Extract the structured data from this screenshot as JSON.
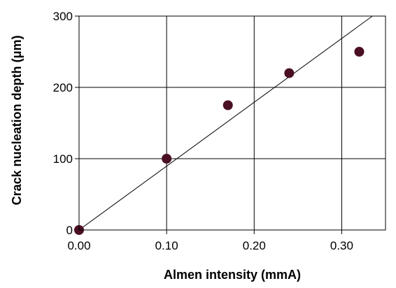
{
  "chart_data": {
    "type": "scatter",
    "title": "",
    "xlabel": "Almen intensity (mmA)",
    "ylabel": "Crack nucleation depth (μm)",
    "xlim": [
      0,
      0.35
    ],
    "ylim": [
      0,
      300
    ],
    "x_ticks": [
      "0.00",
      "0.10",
      "0.20",
      "0.30"
    ],
    "y_ticks": [
      "0",
      "100",
      "200",
      "300"
    ],
    "grid": true,
    "legend": "none",
    "series": [
      {
        "points": [
          {
            "x": 0.0,
            "y": 0
          },
          {
            "x": 0.1,
            "y": 100
          },
          {
            "x": 0.17,
            "y": 175
          },
          {
            "x": 0.24,
            "y": 220
          },
          {
            "x": 0.32,
            "y": 250
          }
        ],
        "color": "#4a0f22"
      }
    ],
    "trend_line": {
      "from": {
        "x": 0.0,
        "y": 0
      },
      "to": {
        "x": 0.335,
        "y": 300
      },
      "color": "#000000"
    }
  }
}
